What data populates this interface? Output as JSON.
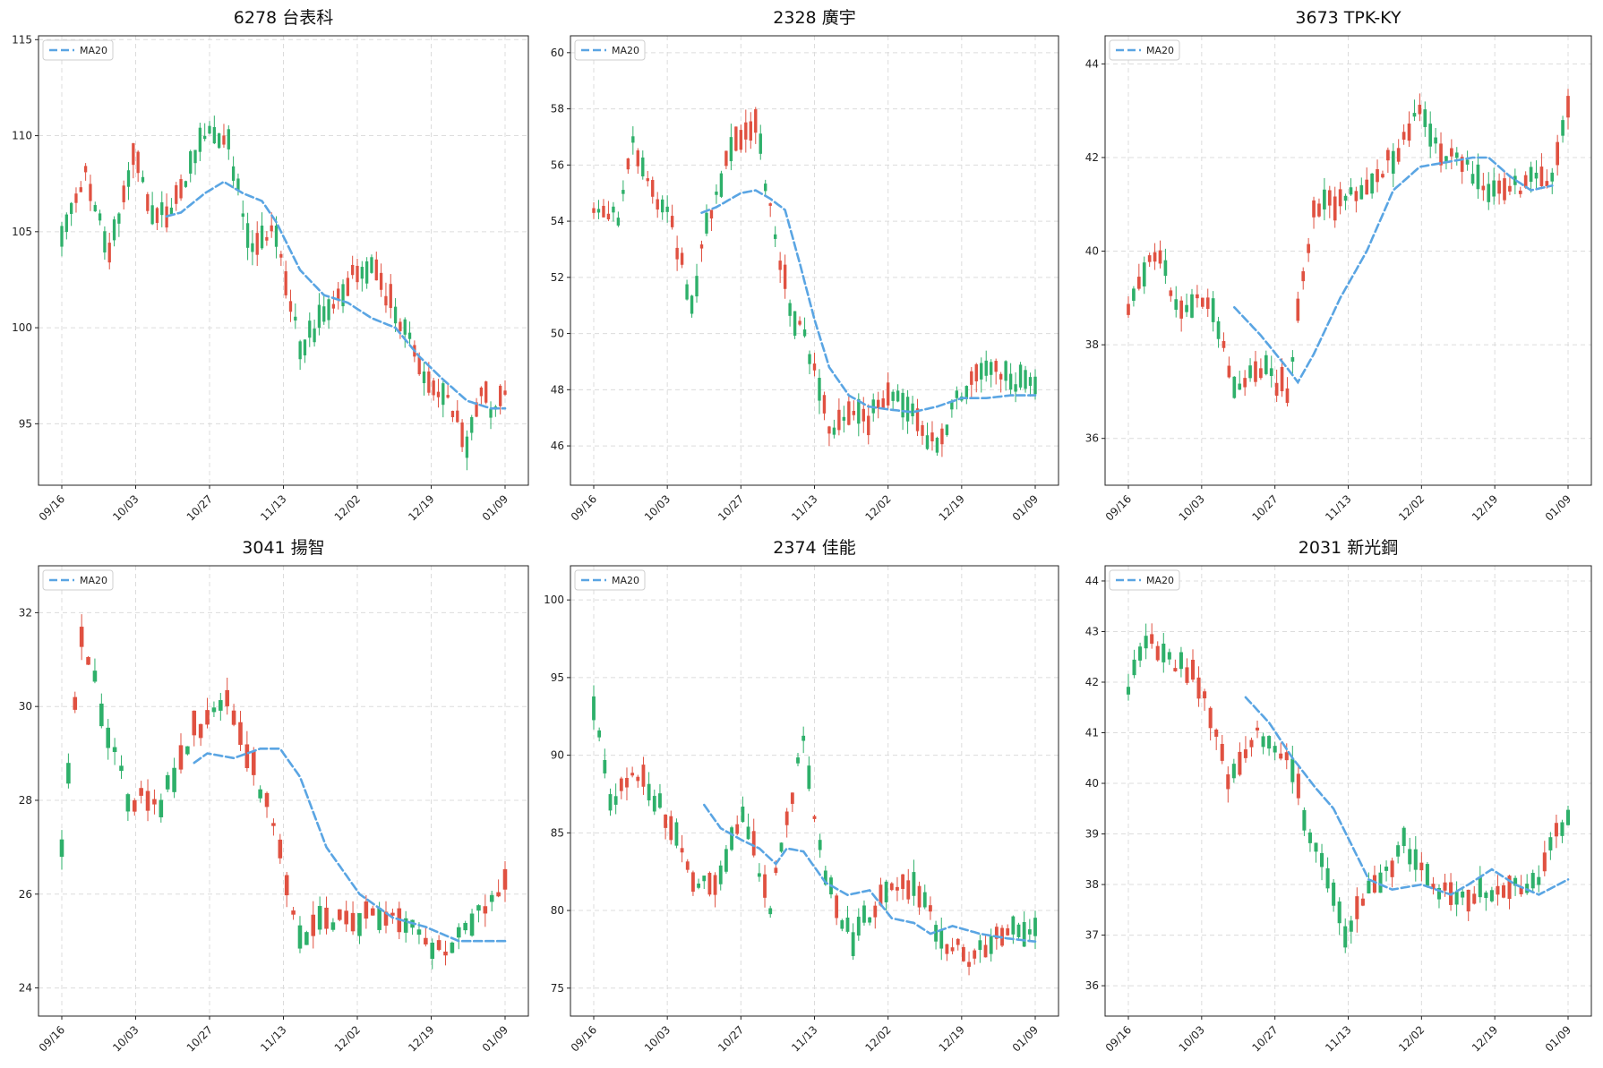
{
  "figure": {
    "layout": "2x3 grid of candlestick charts"
  },
  "colors": {
    "up": "#e05141",
    "down": "#2eb06a",
    "ma": "#5aa5e3",
    "grid": "#dcdcdc"
  },
  "chart_data": [
    {
      "type": "candlestick",
      "title": "6278 台表科",
      "legend": {
        "label": "MA20",
        "position": "top-left"
      },
      "grid": true,
      "x_ticks": [
        "09/16",
        "10/03",
        "10/27",
        "11/13",
        "12/02",
        "12/19",
        "01/09"
      ],
      "y_ticks": [
        95,
        100,
        105,
        110,
        115
      ],
      "ylim": [
        91.8,
        115.2
      ],
      "ohlc_keypoints": [
        [
          0,
          105.0
        ],
        [
          5,
          108.0
        ],
        [
          10,
          104.0
        ],
        [
          15,
          109.0
        ],
        [
          20,
          105.5
        ],
        [
          25,
          107.0
        ],
        [
          30,
          110.0
        ],
        [
          35,
          109.5
        ],
        [
          40,
          104.0
        ],
        [
          45,
          105.0
        ],
        [
          50,
          99.0
        ],
        [
          55,
          100.5
        ],
        [
          60,
          102.5
        ],
        [
          65,
          103.0
        ],
        [
          70,
          101.0
        ],
        [
          75,
          98.0
        ],
        [
          80,
          96.5
        ],
        [
          85,
          94.0
        ],
        [
          88,
          96.5
        ],
        [
          90,
          96.0
        ],
        [
          93,
          96.5
        ]
      ],
      "ma20": [
        [
          22,
          105.8
        ],
        [
          25,
          106.0
        ],
        [
          30,
          107.0
        ],
        [
          34,
          107.6
        ],
        [
          38,
          107.0
        ],
        [
          42,
          106.6
        ],
        [
          45,
          105.5
        ],
        [
          50,
          103.0
        ],
        [
          55,
          101.7
        ],
        [
          60,
          101.3
        ],
        [
          65,
          100.5
        ],
        [
          70,
          100.0
        ],
        [
          75,
          98.5
        ],
        [
          80,
          97.3
        ],
        [
          85,
          96.2
        ],
        [
          90,
          95.8
        ],
        [
          93,
          95.8
        ]
      ],
      "last_index": 93
    },
    {
      "type": "candlestick",
      "title": "2328 廣宇",
      "legend": {
        "label": "MA20",
        "position": "top-left"
      },
      "grid": true,
      "x_ticks": [
        "09/16",
        "10/03",
        "10/27",
        "11/13",
        "12/02",
        "12/19",
        "01/09"
      ],
      "y_ticks": [
        46,
        48,
        50,
        52,
        54,
        56,
        58,
        60
      ],
      "ylim": [
        44.6,
        60.6
      ],
      "ohlc_keypoints": [
        [
          0,
          54.5
        ],
        [
          5,
          54.0
        ],
        [
          8,
          57.0
        ],
        [
          12,
          55.0
        ],
        [
          15,
          54.5
        ],
        [
          20,
          51.0
        ],
        [
          23,
          54.0
        ],
        [
          27,
          56.0
        ],
        [
          30,
          57.0
        ],
        [
          33,
          57.5
        ],
        [
          36,
          54.5
        ],
        [
          40,
          51.0
        ],
        [
          45,
          49.0
        ],
        [
          48,
          46.5
        ],
        [
          52,
          47.0
        ],
        [
          56,
          47.0
        ],
        [
          60,
          48.0
        ],
        [
          65,
          47.0
        ],
        [
          70,
          46.0
        ],
        [
          75,
          48.0
        ],
        [
          80,
          49.0
        ],
        [
          85,
          48.3
        ],
        [
          90,
          48.0
        ]
      ],
      "ma20": [
        [
          22,
          54.3
        ],
        [
          25,
          54.5
        ],
        [
          30,
          55.0
        ],
        [
          33,
          55.1
        ],
        [
          36,
          54.8
        ],
        [
          39,
          54.4
        ],
        [
          42,
          52.5
        ],
        [
          45,
          50.5
        ],
        [
          48,
          48.8
        ],
        [
          52,
          47.8
        ],
        [
          56,
          47.4
        ],
        [
          60,
          47.3
        ],
        [
          65,
          47.2
        ],
        [
          70,
          47.4
        ],
        [
          75,
          47.7
        ],
        [
          80,
          47.7
        ],
        [
          85,
          47.8
        ],
        [
          90,
          47.8
        ]
      ],
      "last_index": 90
    },
    {
      "type": "candlestick",
      "title": "3673 TPK-KY",
      "legend": {
        "label": "MA20",
        "position": "top-left"
      },
      "grid": true,
      "x_ticks": [
        "09/16",
        "10/03",
        "10/27",
        "11/13",
        "12/02",
        "12/19",
        "01/09"
      ],
      "y_ticks": [
        36,
        38,
        40,
        42,
        44
      ],
      "ylim": [
        35.0,
        44.6
      ],
      "ohlc_keypoints": [
        [
          0,
          38.8
        ],
        [
          5,
          40.0
        ],
        [
          10,
          38.8
        ],
        [
          15,
          39.0
        ],
        [
          20,
          37.2
        ],
        [
          25,
          37.5
        ],
        [
          30,
          37.0
        ],
        [
          35,
          41.0
        ],
        [
          40,
          41.0
        ],
        [
          45,
          41.5
        ],
        [
          50,
          42.0
        ],
        [
          55,
          43.0
        ],
        [
          60,
          42.0
        ],
        [
          65,
          41.7
        ],
        [
          70,
          41.2
        ],
        [
          75,
          41.5
        ],
        [
          80,
          41.5
        ],
        [
          83,
          43.0
        ]
      ],
      "ma20": [
        [
          20,
          38.8
        ],
        [
          25,
          38.2
        ],
        [
          30,
          37.5
        ],
        [
          32,
          37.2
        ],
        [
          35,
          37.8
        ],
        [
          40,
          39.0
        ],
        [
          45,
          40.0
        ],
        [
          50,
          41.3
        ],
        [
          55,
          41.8
        ],
        [
          60,
          41.9
        ],
        [
          65,
          42.0
        ],
        [
          68,
          42.0
        ],
        [
          72,
          41.6
        ],
        [
          76,
          41.3
        ],
        [
          80,
          41.4
        ]
      ],
      "last_index": 83
    },
    {
      "type": "candlestick",
      "title": "3041 揚智",
      "legend": {
        "label": "MA20",
        "position": "top-left"
      },
      "grid": true,
      "x_ticks": [
        "09/16",
        "10/03",
        "10/27",
        "11/13",
        "12/02",
        "12/19",
        "01/09"
      ],
      "y_ticks": [
        24,
        26,
        28,
        30,
        32
      ],
      "ylim": [
        23.4,
        33.0
      ],
      "ohlc_keypoints": [
        [
          0,
          27.0
        ],
        [
          3,
          31.5
        ],
        [
          6,
          30.0
        ],
        [
          10,
          28.0
        ],
        [
          15,
          28.0
        ],
        [
          20,
          29.5
        ],
        [
          25,
          30.0
        ],
        [
          28,
          29.0
        ],
        [
          32,
          27.5
        ],
        [
          36,
          25.0
        ],
        [
          40,
          25.5
        ],
        [
          45,
          25.5
        ],
        [
          50,
          25.5
        ],
        [
          55,
          25.0
        ],
        [
          58,
          24.8
        ],
        [
          62,
          25.5
        ],
        [
          65,
          26.0
        ],
        [
          67,
          26.2
        ]
      ],
      "ma20": [
        [
          20,
          28.8
        ],
        [
          22,
          29.0
        ],
        [
          26,
          28.9
        ],
        [
          30,
          29.1
        ],
        [
          33,
          29.1
        ],
        [
          36,
          28.5
        ],
        [
          40,
          27.0
        ],
        [
          45,
          26.0
        ],
        [
          50,
          25.5
        ],
        [
          55,
          25.3
        ],
        [
          60,
          25.0
        ],
        [
          65,
          25.0
        ],
        [
          67,
          25.0
        ]
      ],
      "last_index": 67
    },
    {
      "type": "candlestick",
      "title": "2374 佳能",
      "legend": {
        "label": "MA20",
        "position": "top-left"
      },
      "grid": true,
      "x_ticks": [
        "09/16",
        "10/03",
        "10/27",
        "11/13",
        "12/02",
        "12/19",
        "01/09"
      ],
      "y_ticks": [
        75,
        80,
        85,
        90,
        95,
        100
      ],
      "ylim": [
        73.2,
        102.2
      ],
      "ohlc_keypoints": [
        [
          0,
          93.0
        ],
        [
          3,
          87.0
        ],
        [
          7,
          89.0
        ],
        [
          12,
          87.0
        ],
        [
          18,
          82.0
        ],
        [
          22,
          82.0
        ],
        [
          27,
          86.0
        ],
        [
          32,
          80.5
        ],
        [
          38,
          91.0
        ],
        [
          42,
          82.0
        ],
        [
          47,
          78.0
        ],
        [
          52,
          81.0
        ],
        [
          58,
          82.0
        ],
        [
          63,
          78.0
        ],
        [
          68,
          77.0
        ],
        [
          72,
          78.0
        ],
        [
          76,
          79.0
        ],
        [
          80,
          78.5
        ]
      ],
      "ma20": [
        [
          20,
          86.8
        ],
        [
          23,
          85.3
        ],
        [
          27,
          84.5
        ],
        [
          30,
          84.0
        ],
        [
          33,
          83.0
        ],
        [
          35,
          84.0
        ],
        [
          38,
          83.8
        ],
        [
          42,
          81.8
        ],
        [
          46,
          81.0
        ],
        [
          50,
          81.3
        ],
        [
          54,
          79.5
        ],
        [
          58,
          79.2
        ],
        [
          61,
          78.5
        ],
        [
          65,
          79.0
        ],
        [
          70,
          78.5
        ],
        [
          75,
          78.2
        ],
        [
          80,
          78.0
        ]
      ],
      "last_index": 80
    },
    {
      "type": "candlestick",
      "title": "2031 新光鋼",
      "legend": {
        "label": "MA20",
        "position": "top-left"
      },
      "grid": true,
      "x_ticks": [
        "09/16",
        "10/03",
        "10/27",
        "11/13",
        "12/02",
        "12/19",
        "01/09"
      ],
      "y_ticks": [
        36,
        37,
        38,
        39,
        40,
        41,
        42,
        43,
        44
      ],
      "ylim": [
        35.4,
        44.3
      ],
      "ohlc_keypoints": [
        [
          0,
          41.8
        ],
        [
          3,
          42.8
        ],
        [
          7,
          42.5
        ],
        [
          12,
          42.0
        ],
        [
          17,
          40.2
        ],
        [
          22,
          41.0
        ],
        [
          27,
          40.5
        ],
        [
          32,
          38.7
        ],
        [
          37,
          37.0
        ],
        [
          42,
          38.0
        ],
        [
          47,
          38.8
        ],
        [
          52,
          38.0
        ],
        [
          57,
          37.8
        ],
        [
          62,
          37.8
        ],
        [
          67,
          38.0
        ],
        [
          70,
          38.2
        ],
        [
          73,
          39.0
        ],
        [
          75,
          39.2
        ]
      ],
      "ma20": [
        [
          20,
          41.7
        ],
        [
          24,
          41.2
        ],
        [
          28,
          40.5
        ],
        [
          32,
          39.9
        ],
        [
          35,
          39.5
        ],
        [
          38,
          38.8
        ],
        [
          41,
          38.1
        ],
        [
          45,
          37.9
        ],
        [
          50,
          38.0
        ],
        [
          55,
          37.8
        ],
        [
          58,
          38.0
        ],
        [
          62,
          38.3
        ],
        [
          66,
          38.0
        ],
        [
          70,
          37.8
        ],
        [
          75,
          38.1
        ]
      ],
      "last_index": 75
    }
  ]
}
